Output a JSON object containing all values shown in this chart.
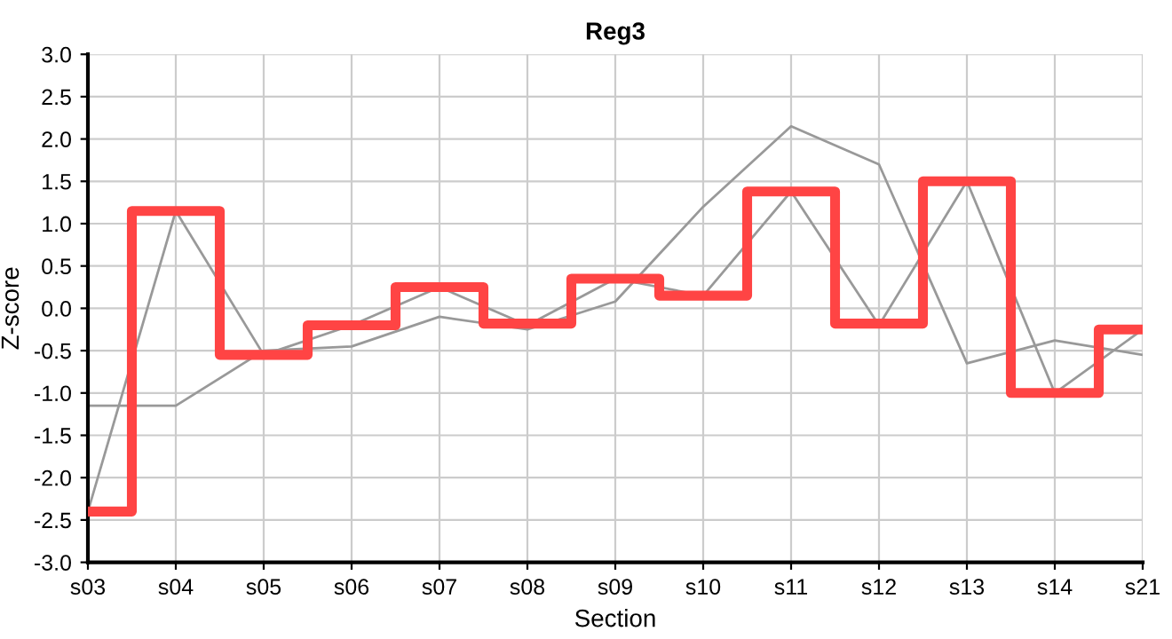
{
  "chart_data": {
    "type": "line",
    "title": "Reg3",
    "xlabel": "Section",
    "ylabel": "Z-score",
    "categories": [
      "s03",
      "s04",
      "s05",
      "s06",
      "s07",
      "s08",
      "s09",
      "s10",
      "s11",
      "s12",
      "s13",
      "s14",
      "s21"
    ],
    "series": [
      {
        "color": "#999999",
        "values": [
          -2.4,
          1.15,
          -0.55,
          -0.2,
          0.25,
          -0.2,
          0.35,
          0.15,
          1.38,
          -0.2,
          1.5,
          -1.0,
          -0.25
        ]
      },
      {
        "color": "#999999",
        "values": [
          -1.15,
          -1.15,
          -0.5,
          -0.45,
          -0.1,
          -0.25,
          0.08,
          1.2,
          2.15,
          1.7,
          -0.65,
          -0.38,
          -0.55
        ]
      },
      {
        "type": "step",
        "color": "#ff4444",
        "values": [
          -2.4,
          1.15,
          -0.55,
          -0.2,
          0.25,
          -0.18,
          0.35,
          0.15,
          1.38,
          -0.18,
          1.5,
          -1.0,
          -0.25
        ]
      }
    ],
    "ylim": [
      -3.0,
      3.0
    ],
    "yticks": [
      {
        "value": -3,
        "label": "-3.0"
      },
      {
        "value": -2.5,
        "label": "-2.5"
      },
      {
        "value": -2,
        "label": "-2.0"
      },
      {
        "value": -1.5,
        "label": "-1.5"
      },
      {
        "value": -1,
        "label": "-1.0"
      },
      {
        "value": -0.5,
        "label": "-0.5"
      },
      {
        "value": 0,
        "label": "0.0"
      },
      {
        "value": 0.5,
        "label": "0.5"
      },
      {
        "value": 1,
        "label": "1.0"
      },
      {
        "value": 1.5,
        "label": "1.5"
      },
      {
        "value": 2,
        "label": "2.0"
      },
      {
        "value": 2.5,
        "label": "2.5"
      },
      {
        "value": 3,
        "label": "3.0"
      }
    ],
    "grid": true,
    "legend": false
  }
}
